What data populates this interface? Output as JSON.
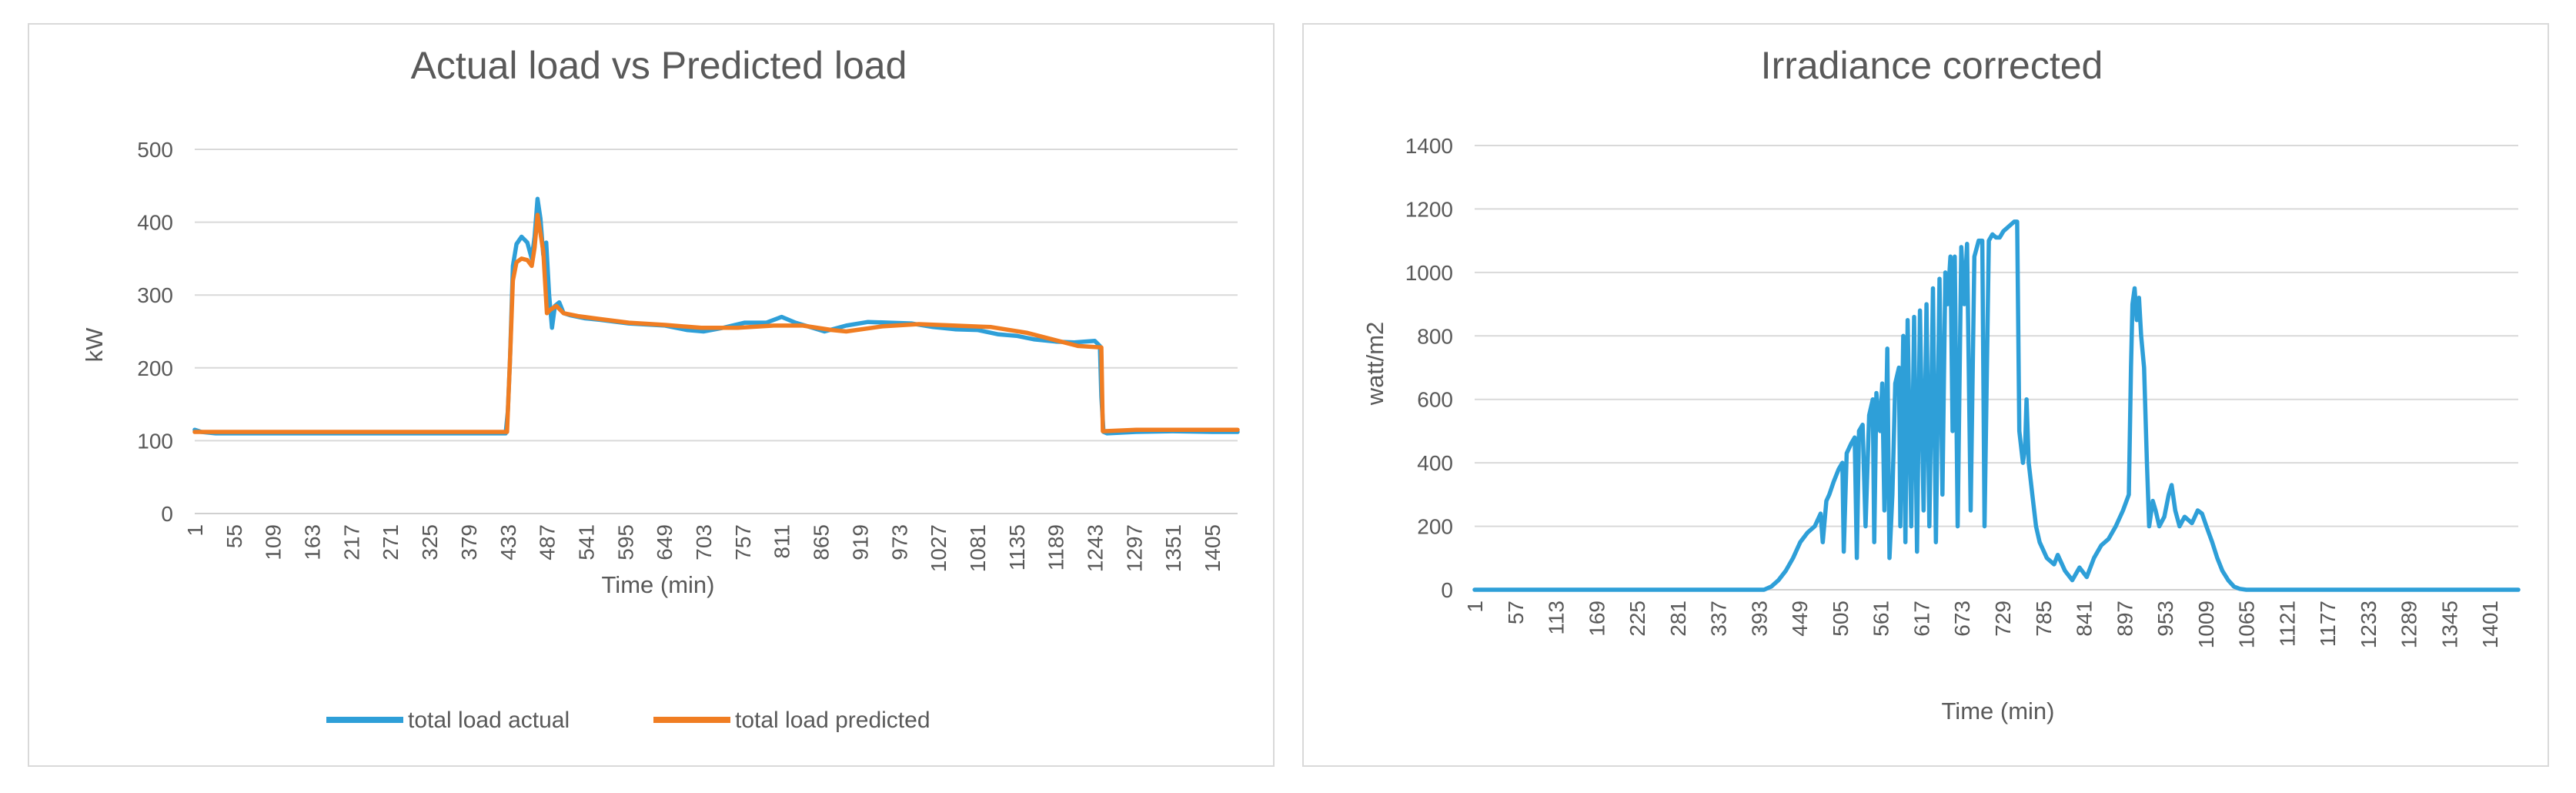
{
  "chart_data": [
    {
      "type": "line",
      "title": "Actual load vs Predicted load",
      "xlabel": "Time (min)",
      "ylabel": "kW",
      "ylim": [
        0,
        500
      ],
      "yticks": [
        "0",
        "100",
        "200",
        "300",
        "400",
        "500"
      ],
      "xlim": [
        1,
        1440
      ],
      "xticks": [
        "1",
        "55",
        "109",
        "163",
        "217",
        "271",
        "325",
        "379",
        "433",
        "487",
        "541",
        "595",
        "649",
        "703",
        "757",
        "811",
        "865",
        "919",
        "973",
        "1027",
        "1081",
        "1135",
        "1189",
        "1243",
        "1297",
        "1351",
        "1405"
      ],
      "grid": true,
      "legend": "bottom",
      "series": [
        {
          "name": "total load actual",
          "color": "#2E9FD8",
          "points": [
            [
              1,
              115
            ],
            [
              10,
              112
            ],
            [
              30,
              110
            ],
            [
              200,
              110
            ],
            [
              430,
              110
            ],
            [
              433,
              140
            ],
            [
              436,
              210
            ],
            [
              440,
              340
            ],
            [
              445,
              370
            ],
            [
              452,
              380
            ],
            [
              460,
              372
            ],
            [
              466,
              350
            ],
            [
              470,
              380
            ],
            [
              474,
              432
            ],
            [
              478,
              405
            ],
            [
              482,
              355
            ],
            [
              486,
              372
            ],
            [
              490,
              300
            ],
            [
              494,
              255
            ],
            [
              498,
              285
            ],
            [
              504,
              290
            ],
            [
              510,
              275
            ],
            [
              520,
              272
            ],
            [
              540,
              268
            ],
            [
              560,
              266
            ],
            [
              600,
              261
            ],
            [
              650,
              258
            ],
            [
              680,
              252
            ],
            [
              703,
              250
            ],
            [
              730,
              255
            ],
            [
              760,
              262
            ],
            [
              790,
              262
            ],
            [
              811,
              270
            ],
            [
              830,
              262
            ],
            [
              850,
              256
            ],
            [
              870,
              250
            ],
            [
              900,
              258
            ],
            [
              930,
              263
            ],
            [
              960,
              262
            ],
            [
              990,
              261
            ],
            [
              1020,
              256
            ],
            [
              1050,
              253
            ],
            [
              1081,
              252
            ],
            [
              1110,
              246
            ],
            [
              1135,
              244
            ],
            [
              1160,
              239
            ],
            [
              1189,
              236
            ],
            [
              1215,
              235
            ],
            [
              1243,
              237
            ],
            [
              1250,
              230
            ],
            [
              1252,
              160
            ],
            [
              1255,
              112
            ],
            [
              1260,
              110
            ],
            [
              1300,
              112
            ],
            [
              1350,
              113
            ],
            [
              1405,
              112
            ],
            [
              1440,
              112
            ]
          ]
        },
        {
          "name": "total load predicted",
          "color": "#F07D22",
          "points": [
            [
              1,
              112
            ],
            [
              200,
              112
            ],
            [
              432,
              112
            ],
            [
              436,
              210
            ],
            [
              440,
              320
            ],
            [
              445,
              345
            ],
            [
              452,
              350
            ],
            [
              460,
              348
            ],
            [
              466,
              340
            ],
            [
              470,
              365
            ],
            [
              474,
              410
            ],
            [
              478,
              385
            ],
            [
              482,
              360
            ],
            [
              487,
              275
            ],
            [
              492,
              280
            ],
            [
              500,
              285
            ],
            [
              510,
              275
            ],
            [
              530,
              271
            ],
            [
              560,
              267
            ],
            [
              600,
              262
            ],
            [
              650,
              259
            ],
            [
              700,
              255
            ],
            [
              750,
              255
            ],
            [
              800,
              258
            ],
            [
              840,
              258
            ],
            [
              880,
              252
            ],
            [
              900,
              250
            ],
            [
              950,
              257
            ],
            [
              1000,
              260
            ],
            [
              1050,
              258
            ],
            [
              1100,
              256
            ],
            [
              1150,
              248
            ],
            [
              1189,
              238
            ],
            [
              1220,
              230
            ],
            [
              1252,
              228
            ],
            [
              1254,
              113
            ],
            [
              1300,
              115
            ],
            [
              1350,
              115
            ],
            [
              1440,
              115
            ]
          ]
        }
      ]
    },
    {
      "type": "line",
      "title": "Irradiance corrected",
      "xlabel": "Time (min)",
      "ylabel": "watt/m2",
      "ylim": [
        0,
        1400
      ],
      "yticks": [
        "0",
        "200",
        "400",
        "600",
        "800",
        "1000",
        "1200",
        "1400"
      ],
      "xlim": [
        1,
        1440
      ],
      "xticks": [
        "1",
        "57",
        "113",
        "169",
        "225",
        "281",
        "337",
        "393",
        "449",
        "505",
        "561",
        "617",
        "673",
        "729",
        "785",
        "841",
        "897",
        "953",
        "1009",
        "1065",
        "1121",
        "1177",
        "1233",
        "1289",
        "1345",
        "1401"
      ],
      "grid": true,
      "legend": "none",
      "series": [
        {
          "color": "#2E9FD8",
          "points": [
            [
              1,
              0
            ],
            [
              400,
              0
            ],
            [
              410,
              10
            ],
            [
              420,
              30
            ],
            [
              430,
              60
            ],
            [
              440,
              100
            ],
            [
              450,
              150
            ],
            [
              460,
              180
            ],
            [
              470,
              200
            ],
            [
              478,
              240
            ],
            [
              481,
              150
            ],
            [
              486,
              280
            ],
            [
              490,
              300
            ],
            [
              496,
              340
            ],
            [
              503,
              380
            ],
            [
              508,
              400
            ],
            [
              510,
              120
            ],
            [
              514,
              430
            ],
            [
              520,
              460
            ],
            [
              525,
              480
            ],
            [
              528,
              100
            ],
            [
              531,
              500
            ],
            [
              536,
              520
            ],
            [
              540,
              200
            ],
            [
              545,
              550
            ],
            [
              550,
              600
            ],
            [
              552,
              150
            ],
            [
              555,
              620
            ],
            [
              560,
              500
            ],
            [
              563,
              650
            ],
            [
              566,
              250
            ],
            [
              570,
              760
            ],
            [
              573,
              100
            ],
            [
              577,
              300
            ],
            [
              581,
              650
            ],
            [
              586,
              700
            ],
            [
              588,
              200
            ],
            [
              592,
              800
            ],
            [
              595,
              150
            ],
            [
              598,
              850
            ],
            [
              603,
              200
            ],
            [
              607,
              860
            ],
            [
              611,
              120
            ],
            [
              615,
              880
            ],
            [
              620,
              250
            ],
            [
              624,
              900
            ],
            [
              628,
              200
            ],
            [
              633,
              950
            ],
            [
              637,
              150
            ],
            [
              642,
              980
            ],
            [
              646,
              300
            ],
            [
              650,
              1000
            ],
            [
              653,
              900
            ],
            [
              657,
              1050
            ],
            [
              660,
              500
            ],
            [
              663,
              1050
            ],
            [
              667,
              200
            ],
            [
              672,
              1080
            ],
            [
              676,
              900
            ],
            [
              680,
              1090
            ],
            [
              685,
              250
            ],
            [
              690,
              1050
            ],
            [
              696,
              1100
            ],
            [
              701,
              1100
            ],
            [
              704,
              200
            ],
            [
              710,
              1100
            ],
            [
              715,
              1120
            ],
            [
              720,
              1110
            ],
            [
              725,
              1110
            ],
            [
              730,
              1130
            ],
            [
              735,
              1140
            ],
            [
              740,
              1150
            ],
            [
              745,
              1160
            ],
            [
              749,
              1160
            ],
            [
              752,
              500
            ],
            [
              757,
              400
            ],
            [
              760,
              450
            ],
            [
              762,
              600
            ],
            [
              765,
              400
            ],
            [
              770,
              300
            ],
            [
              775,
              200
            ],
            [
              780,
              150
            ],
            [
              790,
              100
            ],
            [
              800,
              80
            ],
            [
              805,
              110
            ],
            [
              815,
              60
            ],
            [
              825,
              30
            ],
            [
              835,
              70
            ],
            [
              845,
              40
            ],
            [
              855,
              100
            ],
            [
              865,
              140
            ],
            [
              875,
              160
            ],
            [
              885,
              200
            ],
            [
              895,
              250
            ],
            [
              903,
              300
            ],
            [
              906,
              700
            ],
            [
              908,
              900
            ],
            [
              911,
              950
            ],
            [
              914,
              850
            ],
            [
              917,
              920
            ],
            [
              920,
              800
            ],
            [
              924,
              700
            ],
            [
              928,
              400
            ],
            [
              931,
              200
            ],
            [
              936,
              280
            ],
            [
              940,
              250
            ],
            [
              945,
              200
            ],
            [
              952,
              230
            ],
            [
              958,
              300
            ],
            [
              962,
              330
            ],
            [
              967,
              250
            ],
            [
              973,
              200
            ],
            [
              980,
              230
            ],
            [
              990,
              210
            ],
            [
              998,
              250
            ],
            [
              1004,
              240
            ],
            [
              1010,
              200
            ],
            [
              1018,
              150
            ],
            [
              1025,
              100
            ],
            [
              1032,
              60
            ],
            [
              1040,
              30
            ],
            [
              1048,
              10
            ],
            [
              1056,
              3
            ],
            [
              1065,
              0
            ],
            [
              1440,
              0
            ]
          ]
        }
      ]
    }
  ]
}
